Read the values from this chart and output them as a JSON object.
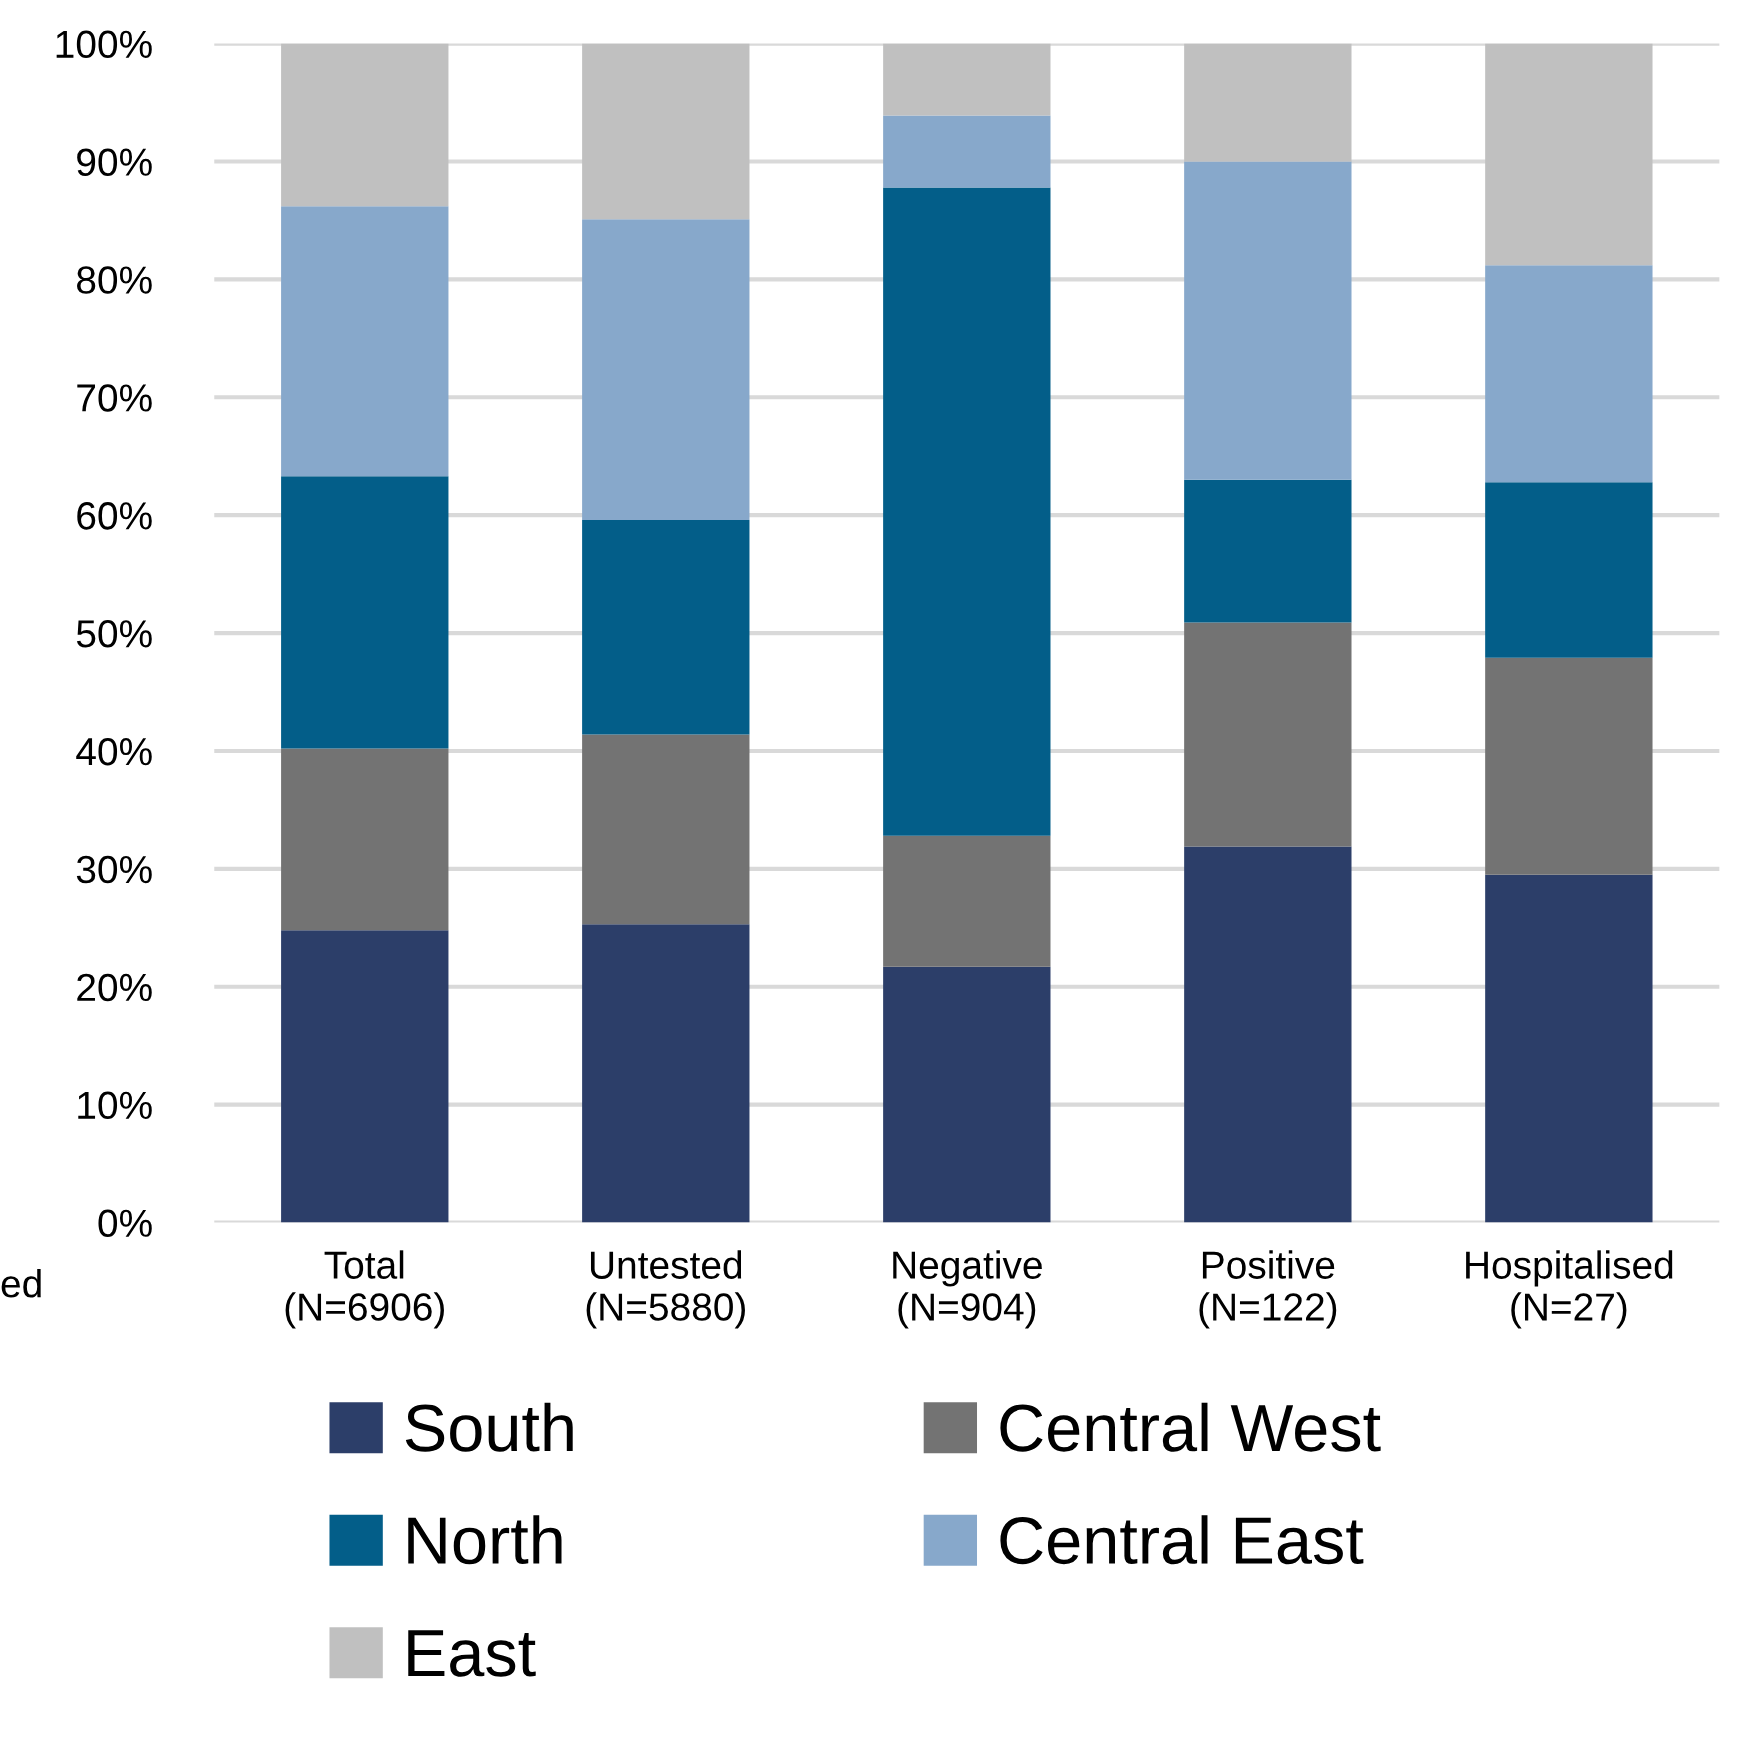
{
  "chart_data": {
    "type": "bar",
    "stacked": true,
    "categories": [
      "Total\n(N=6906)",
      "Untested\n(N=5880)",
      "Negative\n(N=904)",
      "Positive\n(N=122)",
      "Hospitalised\n(N=27)"
    ],
    "series": [
      {
        "name": "South",
        "color": "#2c3e69",
        "values": [
          24.8,
          25.3,
          21.7,
          31.9,
          29.5
        ]
      },
      {
        "name": "Central West",
        "color": "#737373",
        "values": [
          15.4,
          16.1,
          11.1,
          19.0,
          18.4
        ]
      },
      {
        "name": "North",
        "color": "#035e89",
        "values": [
          23.1,
          18.2,
          55.0,
          12.1,
          14.9
        ]
      },
      {
        "name": "Central East",
        "color": "#87a8cb",
        "values": [
          22.9,
          25.5,
          6.1,
          27.0,
          18.4
        ]
      },
      {
        "name": "East",
        "color": "#c0c0c0",
        "values": [
          13.8,
          14.9,
          6.1,
          10.0,
          18.8
        ]
      }
    ],
    "ylim": [
      0,
      100
    ],
    "yticks": [
      {
        "value": 0,
        "label": "0%"
      },
      {
        "value": 10,
        "label": "10%"
      },
      {
        "value": 20,
        "label": "20%"
      },
      {
        "value": 30,
        "label": "30%"
      },
      {
        "value": 40,
        "label": "40%"
      },
      {
        "value": 50,
        "label": "50%"
      },
      {
        "value": 60,
        "label": "60%"
      },
      {
        "value": 70,
        "label": "70%"
      },
      {
        "value": 80,
        "label": "80%"
      },
      {
        "value": 90,
        "label": "90%"
      },
      {
        "value": 100,
        "label": "100%"
      }
    ],
    "grid": "y",
    "legend": "bottom",
    "annotations": [
      "ed"
    ]
  }
}
